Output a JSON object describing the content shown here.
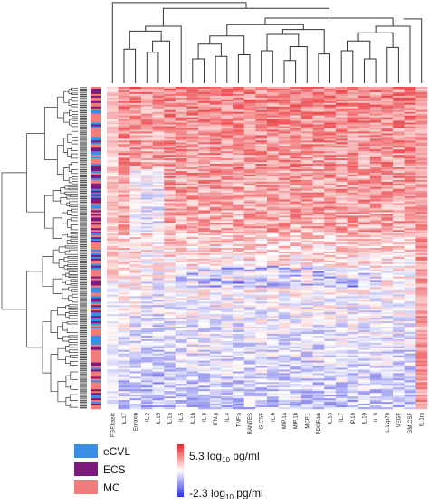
{
  "chart_data": {
    "type": "heatmap",
    "title": "",
    "columns": [
      "FGF.basic",
      "IL.17",
      "Eotaxin",
      "IL.2",
      "IL.15",
      "IL.1a",
      "IL.5",
      "IL.1b",
      "IL.8",
      "IFN.g",
      "IL.4",
      "TNF.a",
      "RANTES",
      "G.CSF",
      "IL.6",
      "MIP.1a",
      "MIP.1b",
      "MCP.1",
      "PDGF.bb",
      "IL.13",
      "IL.7",
      "IP.10",
      "IL.10",
      "IL.9",
      "IL.12p70",
      "VEGF",
      "GM.CSF",
      "IL.1ra"
    ],
    "row_groups": [
      "eCVL",
      "ECS",
      "MC"
    ],
    "group_colors": {
      "eCVL": "#3a8ee6",
      "ECS": "#7a1a7a",
      "MC": "#f07c7c"
    },
    "color_scale": {
      "max_text": "5.3 log",
      "min_text": "-2.3 log",
      "base": "10",
      "unit": "pg/ml",
      "max_value": 5.3,
      "min_value": -2.3,
      "high_color": "#e8262a",
      "mid_color": "#ffffff",
      "low_color": "#2f2fe0"
    },
    "legend_placement": "bottom-left",
    "dendrograms": [
      "top (columns)",
      "left (rows)"
    ]
  }
}
